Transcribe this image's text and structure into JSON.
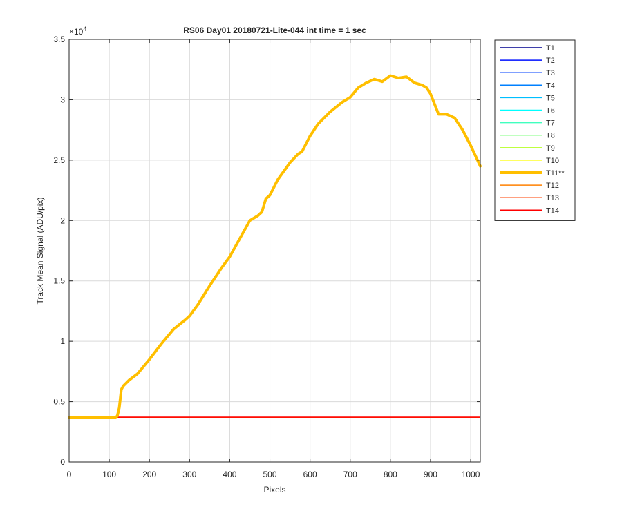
{
  "chart_data": {
    "type": "line",
    "title": "RS06 Day01 20180721-Lite-044 int time = 1 sec",
    "xlabel": "Pixels",
    "ylabel": "Track Mean Signal (ADU/pix)",
    "xlim": [
      0,
      1024
    ],
    "ylim": [
      0,
      35000
    ],
    "x_ticks": [
      0,
      100,
      200,
      300,
      400,
      500,
      600,
      700,
      800,
      900,
      1000
    ],
    "y_ticks": [
      0,
      0.5,
      1,
      1.5,
      2,
      2.5,
      3,
      3.5
    ],
    "y_exponent_label": "×10",
    "y_exponent_power": "4",
    "grid": true,
    "legend_position": "outside-right",
    "baseline_series": [
      {
        "name": "T1",
        "color": "#00008f",
        "value": 3700
      },
      {
        "name": "T2",
        "color": "#0010ff",
        "value": 3700
      },
      {
        "name": "T3",
        "color": "#0040ff",
        "value": 3700
      },
      {
        "name": "T4",
        "color": "#0080ff",
        "value": 3700
      },
      {
        "name": "T5",
        "color": "#00bfff",
        "value": 3700
      },
      {
        "name": "T6",
        "color": "#00ffff",
        "value": 3700
      },
      {
        "name": "T7",
        "color": "#40ffbf",
        "value": 3700
      },
      {
        "name": "T8",
        "color": "#80ff80",
        "value": 3700
      },
      {
        "name": "T9",
        "color": "#bfff40",
        "value": 3700
      },
      {
        "name": "T10",
        "color": "#ffff00",
        "value": 3700
      },
      {
        "name": "T12",
        "color": "#ff8000",
        "value": 3700
      },
      {
        "name": "T13",
        "color": "#ff4000",
        "value": 3700
      },
      {
        "name": "T14",
        "color": "#ff0000",
        "value": 3720
      }
    ],
    "highlight_series": {
      "name": "T11**",
      "color": "#ffbf00",
      "x": [
        0,
        100,
        115,
        120,
        125,
        130,
        135,
        150,
        170,
        200,
        230,
        260,
        290,
        300,
        320,
        350,
        380,
        400,
        420,
        450,
        470,
        480,
        490,
        500,
        520,
        550,
        570,
        580,
        600,
        620,
        650,
        680,
        700,
        720,
        740,
        760,
        780,
        800,
        820,
        840,
        860,
        880,
        890,
        900,
        920,
        940,
        960,
        980,
        1000,
        1024
      ],
      "y": [
        3700,
        3700,
        3700,
        3800,
        4500,
        6000,
        6300,
        6800,
        7300,
        8500,
        9800,
        11000,
        11800,
        12100,
        13000,
        14600,
        16100,
        17000,
        18200,
        20000,
        20400,
        20700,
        21800,
        22100,
        23400,
        24800,
        25500,
        25700,
        27000,
        28000,
        29000,
        29800,
        30200,
        31000,
        31400,
        31700,
        31500,
        32000,
        31800,
        31900,
        31400,
        31200,
        31000,
        30500,
        28800,
        28800,
        28500,
        27500,
        26200,
        24500
      ]
    }
  }
}
